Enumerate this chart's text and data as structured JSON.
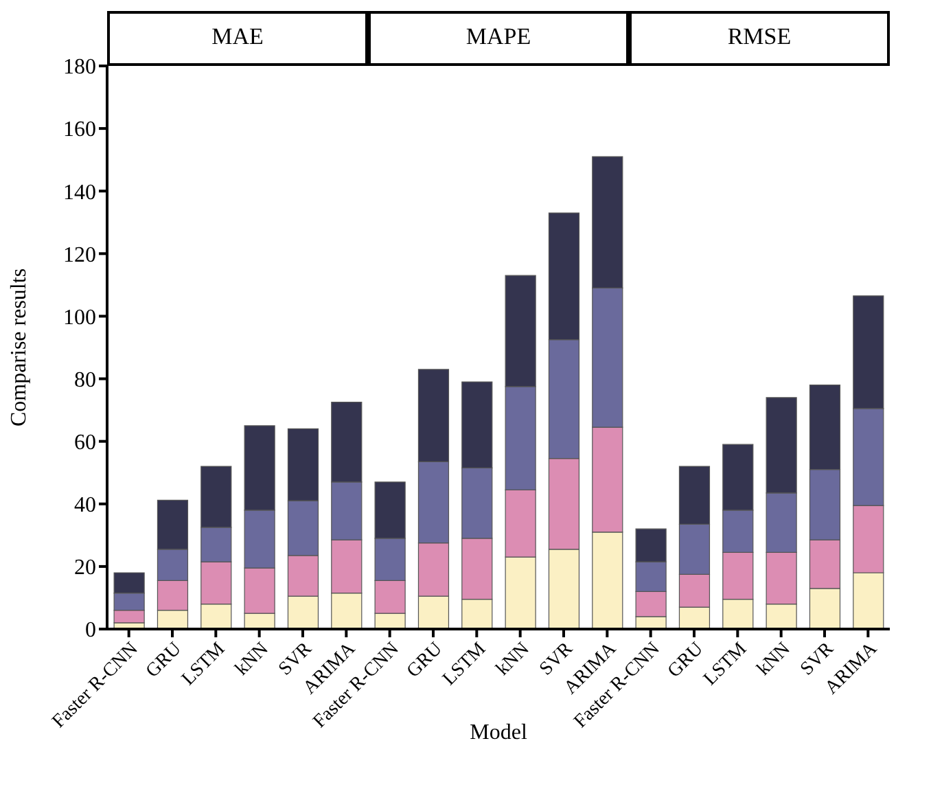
{
  "chart_data": [
    {
      "type": "bar",
      "title": "MAE",
      "ylabel": "Comparise results",
      "categories": [
        "Faster R-CNN",
        "GRU",
        "LSTM",
        "kNN",
        "SVR",
        "ARIMA"
      ],
      "stacked": true,
      "ylim": [
        0,
        180
      ],
      "yticks": [
        0,
        20,
        40,
        60,
        80,
        100,
        120,
        140,
        160,
        180
      ],
      "series": [
        {
          "color": "#fbf0c4",
          "values": [
            2,
            6,
            8,
            5,
            10.5,
            11.5
          ]
        },
        {
          "color": "#dc8db3",
          "values": [
            4,
            9.5,
            13.5,
            14.5,
            13,
            17
          ]
        },
        {
          "color": "#6a6a9c",
          "values": [
            5.5,
            10,
            11,
            18.5,
            17.5,
            18.5
          ]
        },
        {
          "color": "#34344f",
          "values": [
            6.5,
            15.7,
            19.5,
            27,
            23,
            25.5
          ]
        }
      ]
    },
    {
      "type": "bar",
      "title": "MAPE",
      "xlabel": "Model",
      "categories": [
        "Faster R-CNN",
        "GRU",
        "LSTM",
        "kNN",
        "SVR",
        "ARIMA"
      ],
      "stacked": true,
      "ylim": [
        0,
        180
      ],
      "yticks": [
        0,
        20,
        40,
        60,
        80,
        100,
        120,
        140,
        160,
        180
      ],
      "tick_labels": "x",
      "series": [
        {
          "color": "#fbf0c4",
          "values": [
            5,
            10.5,
            9.5,
            23,
            25.5,
            31
          ]
        },
        {
          "color": "#dc8db3",
          "values": [
            10.5,
            17,
            19.5,
            21.5,
            29,
            33.5
          ]
        },
        {
          "color": "#6a6a9c",
          "values": [
            13.5,
            26,
            22.5,
            33,
            38,
            44.5
          ]
        },
        {
          "color": "#34344f",
          "values": [
            18,
            29.5,
            27.5,
            35.5,
            40.5,
            42
          ]
        }
      ]
    },
    {
      "type": "bar",
      "title": "RMSE",
      "categories": [
        "Faster R-CNN",
        "GRU",
        "LSTM",
        "kNN",
        "SVR",
        "ARIMA"
      ],
      "stacked": true,
      "ylim": [
        0,
        180
      ],
      "yticks": [
        0,
        20,
        40,
        60,
        80,
        100,
        120,
        140,
        160,
        180
      ],
      "tick_labels": "x",
      "series": [
        {
          "color": "#fbf0c4",
          "values": [
            4,
            7,
            9.5,
            8,
            13,
            18
          ]
        },
        {
          "color": "#dc8db3",
          "values": [
            8,
            10.5,
            15,
            16.5,
            15.5,
            21.5
          ]
        },
        {
          "color": "#6a6a9c",
          "values": [
            9.5,
            16,
            13.5,
            19,
            22.5,
            31
          ]
        },
        {
          "color": "#34344f",
          "values": [
            10.5,
            18.5,
            21,
            30.5,
            27,
            36
          ]
        }
      ]
    }
  ]
}
